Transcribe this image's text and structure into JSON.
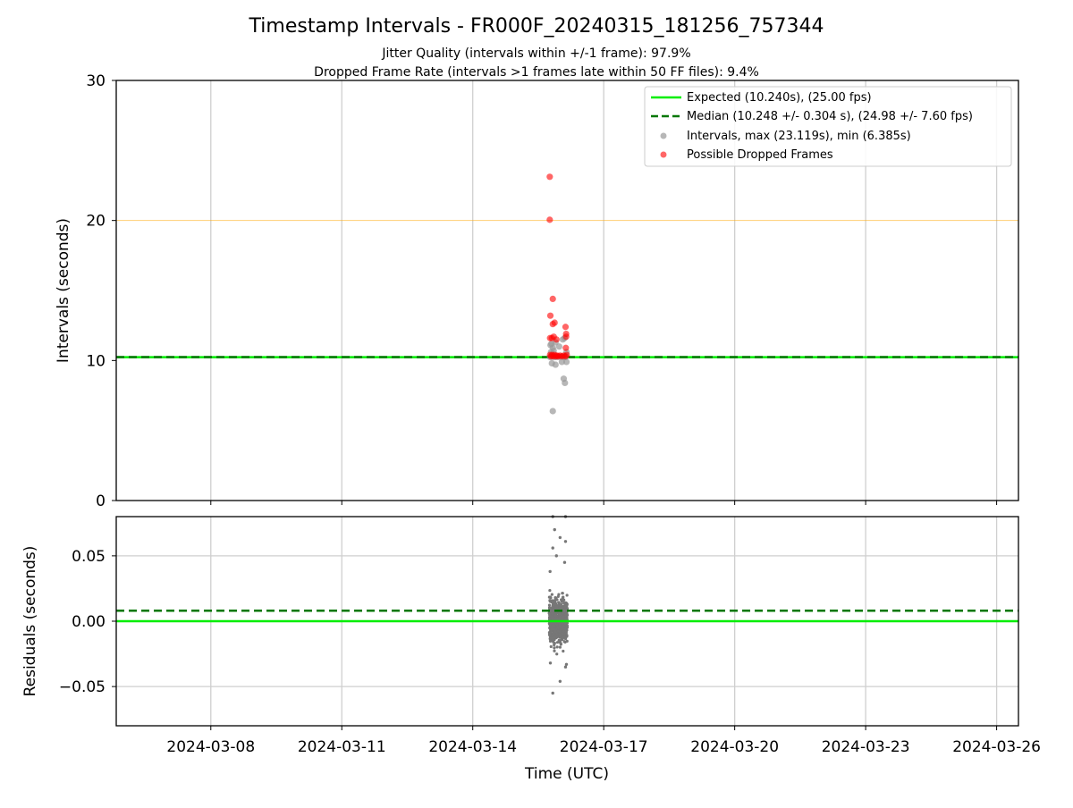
{
  "title": "Timestamp Intervals - FR000F_20240315_181256_757344",
  "subtitle_line1": "Jitter Quality (intervals within +/-1 frame): 97.9%",
  "subtitle_line2": "Dropped Frame Rate (intervals >1 frames late within 50 FF files): 9.4%",
  "chart_data": [
    {
      "type": "scatter",
      "ylabel": "Intervals (seconds)",
      "ylim": [
        0,
        30
      ],
      "y_ticks": [
        0,
        10,
        20,
        30
      ],
      "y_tick_labels": [
        "0",
        "10",
        "20",
        "30"
      ],
      "xlim": [
        "2024-03-05T20:00:00",
        "2024-03-26T12:00:00"
      ],
      "grid": true,
      "legend_position": "upper right",
      "legend": [
        {
          "label": "Expected (10.240s), (25.00 fps)",
          "style": "solid-line",
          "color": "#00ee00"
        },
        {
          "label": "Median (10.248 +/- 0.304 s), (24.98 +/- 7.60 fps)",
          "style": "dashed-line",
          "color": "#007700"
        },
        {
          "label": "Intervals, max (23.119s), min (6.385s)",
          "style": "marker",
          "color": "#999999"
        },
        {
          "label": "Possible Dropped Frames",
          "style": "marker",
          "color": "#ff0000"
        }
      ],
      "reference_lines": [
        {
          "name": "expected",
          "y": 10.24,
          "color": "#00ee00",
          "style": "solid"
        },
        {
          "name": "median",
          "y": 10.248,
          "color": "#007700",
          "style": "dashed"
        },
        {
          "name": "threshold",
          "y": 20.0,
          "color": "#ffa500",
          "style": "solid"
        }
      ],
      "series": [
        {
          "name": "Intervals, max (23.119s), min (6.385s)",
          "color": "#999999",
          "points": [
            {
              "x": "2024-03-15T18:30:00",
              "y": 10.25
            },
            {
              "x": "2024-03-15T19:30:00",
              "y": 10.26
            },
            {
              "x": "2024-03-15T21:00:00",
              "y": 10.24
            },
            {
              "x": "2024-03-15T22:30:00",
              "y": 10.25
            },
            {
              "x": "2024-03-16T00:00:00",
              "y": 10.26
            },
            {
              "x": "2024-03-16T02:00:00",
              "y": 10.24
            },
            {
              "x": "2024-03-16T03:00:00",
              "y": 10.25
            },
            {
              "x": "2024-03-15T18:45:00",
              "y": 11.1
            },
            {
              "x": "2024-03-15T19:15:00",
              "y": 11.2
            },
            {
              "x": "2024-03-15T20:00:00",
              "y": 10.9
            },
            {
              "x": "2024-03-15T21:30:00",
              "y": 11.3
            },
            {
              "x": "2024-03-15T23:30:00",
              "y": 11.0
            },
            {
              "x": "2024-03-16T01:30:00",
              "y": 11.5
            },
            {
              "x": "2024-03-16T02:30:00",
              "y": 11.6
            },
            {
              "x": "2024-03-15T19:00:00",
              "y": 10.6
            },
            {
              "x": "2024-03-15T20:30:00",
              "y": 10.7
            },
            {
              "x": "2024-03-16T03:30:00",
              "y": 10.6
            },
            {
              "x": "2024-03-15T19:30:00",
              "y": 9.8
            },
            {
              "x": "2024-03-15T21:30:00",
              "y": 9.7
            },
            {
              "x": "2024-03-16T03:30:00",
              "y": 9.9
            },
            {
              "x": "2024-03-16T01:00:00",
              "y": 9.9
            },
            {
              "x": "2024-03-16T02:00:00",
              "y": 8.7
            },
            {
              "x": "2024-03-16T02:40:00",
              "y": 8.4
            },
            {
              "x": "2024-03-15T20:00:00",
              "y": 6.385
            }
          ]
        },
        {
          "name": "Possible Dropped Frames",
          "color": "#ff0000",
          "points": [
            {
              "x": "2024-03-15T18:20:00",
              "y": 23.119
            },
            {
              "x": "2024-03-15T18:20:00",
              "y": 20.05
            },
            {
              "x": "2024-03-15T20:00:00",
              "y": 14.4
            },
            {
              "x": "2024-03-15T18:40:00",
              "y": 13.2
            },
            {
              "x": "2024-03-15T20:00:00",
              "y": 12.6
            },
            {
              "x": "2024-03-15T21:00:00",
              "y": 12.7
            },
            {
              "x": "2024-03-16T03:00:00",
              "y": 12.4
            },
            {
              "x": "2024-03-16T03:20:00",
              "y": 11.9
            },
            {
              "x": "2024-03-16T03:20:00",
              "y": 11.7
            },
            {
              "x": "2024-03-15T18:30:00",
              "y": 11.6
            },
            {
              "x": "2024-03-15T19:30:00",
              "y": 11.6
            },
            {
              "x": "2024-03-15T20:30:00",
              "y": 11.7
            },
            {
              "x": "2024-03-15T22:00:00",
              "y": 11.5
            },
            {
              "x": "2024-03-16T03:10:00",
              "y": 10.9
            },
            {
              "x": "2024-03-15T18:30:00",
              "y": 10.4
            },
            {
              "x": "2024-03-15T19:00:00",
              "y": 10.3
            },
            {
              "x": "2024-03-15T19:40:00",
              "y": 10.4
            },
            {
              "x": "2024-03-15T20:20:00",
              "y": 10.3
            },
            {
              "x": "2024-03-15T21:00:00",
              "y": 10.4
            },
            {
              "x": "2024-03-15T21:40:00",
              "y": 10.3
            },
            {
              "x": "2024-03-15T22:20:00",
              "y": 10.35
            },
            {
              "x": "2024-03-15T23:00:00",
              "y": 10.3
            },
            {
              "x": "2024-03-16T00:00:00",
              "y": 10.35
            },
            {
              "x": "2024-03-16T01:00:00",
              "y": 10.3
            },
            {
              "x": "2024-03-16T02:00:00",
              "y": 10.35
            },
            {
              "x": "2024-03-16T03:00:00",
              "y": 10.3
            },
            {
              "x": "2024-03-16T03:40:00",
              "y": 10.4
            }
          ]
        }
      ]
    },
    {
      "type": "scatter",
      "ylabel": "Residuals (seconds)",
      "xlabel": "Time (UTC)",
      "ylim": [
        -0.08,
        0.08
      ],
      "y_ticks": [
        -0.05,
        0,
        0.05
      ],
      "y_tick_labels": [
        "−0.05",
        "0.00",
        "0.05"
      ],
      "xlim": [
        "2024-03-05T20:00:00",
        "2024-03-26T12:00:00"
      ],
      "x_ticks": [
        "2024-03-08",
        "2024-03-11",
        "2024-03-14",
        "2024-03-17",
        "2024-03-20",
        "2024-03-23",
        "2024-03-26"
      ],
      "x_tick_labels": [
        "2024-03-08",
        "2024-03-11",
        "2024-03-14",
        "2024-03-17",
        "2024-03-20",
        "2024-03-23",
        "2024-03-26"
      ],
      "grid": true,
      "reference_lines": [
        {
          "name": "expected",
          "y": 0.0,
          "color": "#00ee00",
          "style": "solid"
        },
        {
          "name": "median",
          "y": 0.008,
          "color": "#007700",
          "style": "dashed"
        }
      ],
      "residual_cluster": {
        "x_start": "2024-03-15T18:00:00",
        "x_end": "2024-03-16T04:00:00",
        "core_y_range": [
          -0.03,
          0.03
        ],
        "point_count": 650,
        "color": "#777777"
      },
      "series": [
        {
          "name": "residual-outliers",
          "color": "#777777",
          "points": [
            {
              "x": "2024-03-15T20:00:00",
              "y": 0.08
            },
            {
              "x": "2024-03-16T03:00:00",
              "y": 0.08
            },
            {
              "x": "2024-03-15T21:00:00",
              "y": 0.07
            },
            {
              "x": "2024-03-16T00:00:00",
              "y": 0.064
            },
            {
              "x": "2024-03-15T20:00:00",
              "y": 0.056
            },
            {
              "x": "2024-03-16T03:00:00",
              "y": 0.061
            },
            {
              "x": "2024-03-15T22:00:00",
              "y": 0.05
            },
            {
              "x": "2024-03-15T18:30:00",
              "y": 0.038
            },
            {
              "x": "2024-03-16T02:30:00",
              "y": 0.045
            },
            {
              "x": "2024-03-15T18:40:00",
              "y": -0.032
            },
            {
              "x": "2024-03-16T03:00:00",
              "y": -0.035
            },
            {
              "x": "2024-03-16T00:00:00",
              "y": -0.046
            },
            {
              "x": "2024-03-15T20:00:00",
              "y": -0.055
            },
            {
              "x": "2024-03-16T03:30:00",
              "y": -0.033
            }
          ]
        }
      ]
    }
  ]
}
